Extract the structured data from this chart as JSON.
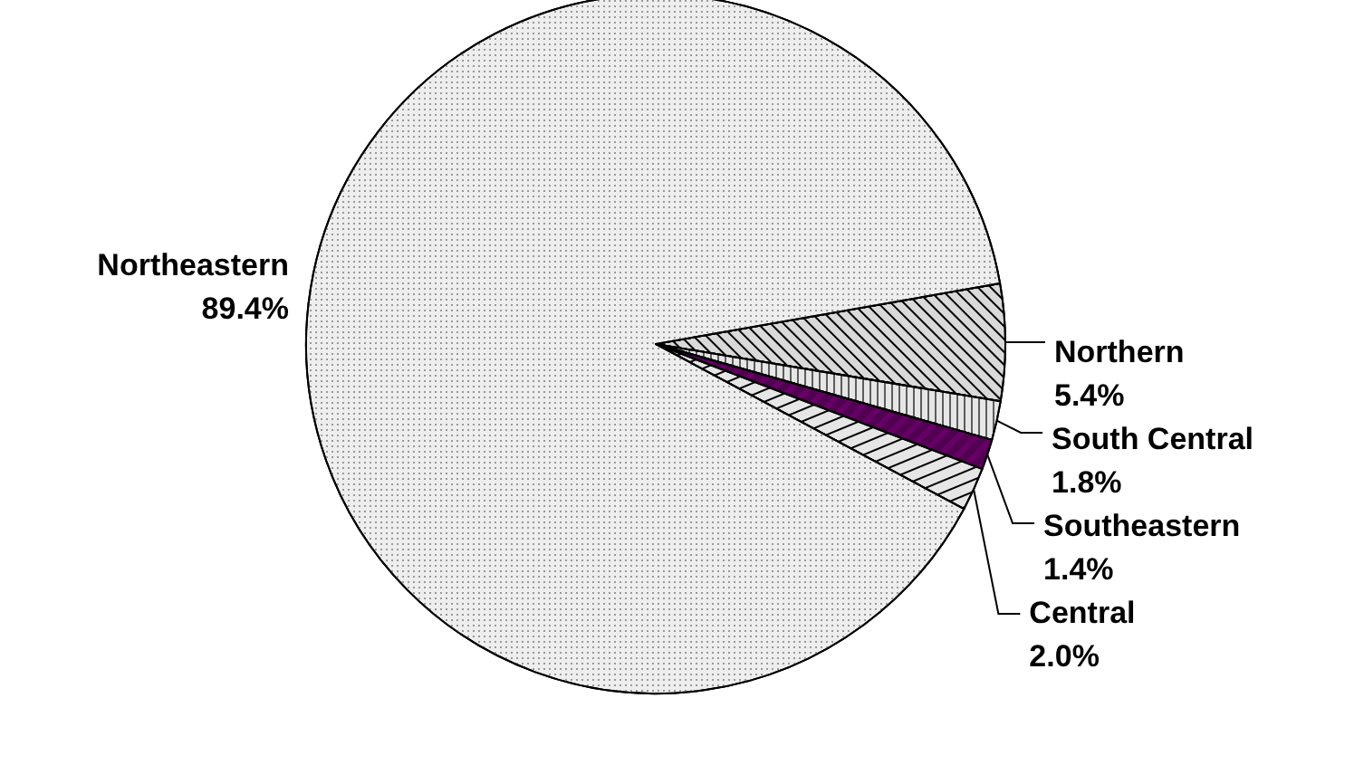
{
  "chart_data": {
    "type": "pie",
    "categories": [
      "Northern",
      "South Central",
      "Southeastern",
      "Central",
      "Northeastern"
    ],
    "values": [
      5.4,
      1.8,
      1.4,
      2.0,
      89.4
    ],
    "value_labels": [
      "5.4%",
      "1.8%",
      "1.4%",
      "2.0%",
      "89.4%"
    ],
    "colors": [
      "#d9d9d9",
      "#e6e6e6",
      "#660066",
      "#e6e6e6",
      "#eeeeee"
    ],
    "legend": false
  }
}
